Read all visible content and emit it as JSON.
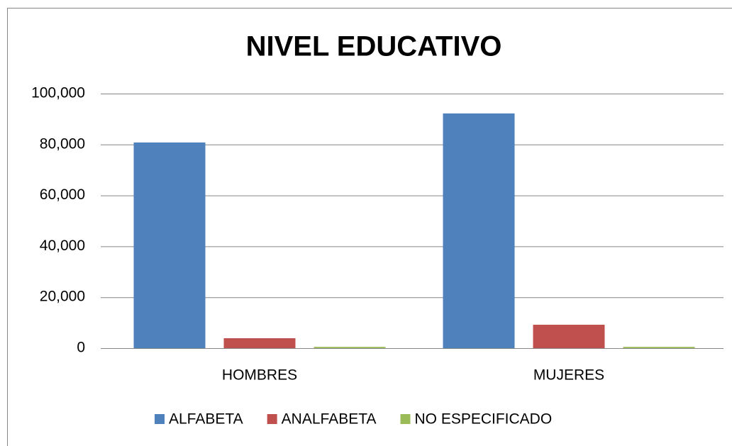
{
  "chart_data": {
    "type": "bar",
    "title": "NIVEL EDUCATIVO",
    "categories": [
      "HOMBRES",
      "MUJERES"
    ],
    "series": [
      {
        "name": "ALFABETA",
        "color": "#4f81bd",
        "values": [
          80800,
          92200
        ]
      },
      {
        "name": "ANALFABETA",
        "color": "#c0504d",
        "values": [
          3900,
          9200
        ]
      },
      {
        "name": "NO ESPECIFICADO",
        "color": "#9bbb59",
        "values": [
          500,
          500
        ]
      }
    ],
    "ylim": [
      0,
      100000
    ],
    "yticks": [
      0,
      {
        "value": 20000,
        "label": "20,000"
      },
      {
        "value": 40000,
        "label": "40,000"
      },
      {
        "value": 60000,
        "label": "60,000"
      },
      {
        "value": 80000,
        "label": "80,000"
      },
      {
        "value": 100000,
        "label": "100,000"
      }
    ],
    "grid": true,
    "legend": "bottom"
  }
}
